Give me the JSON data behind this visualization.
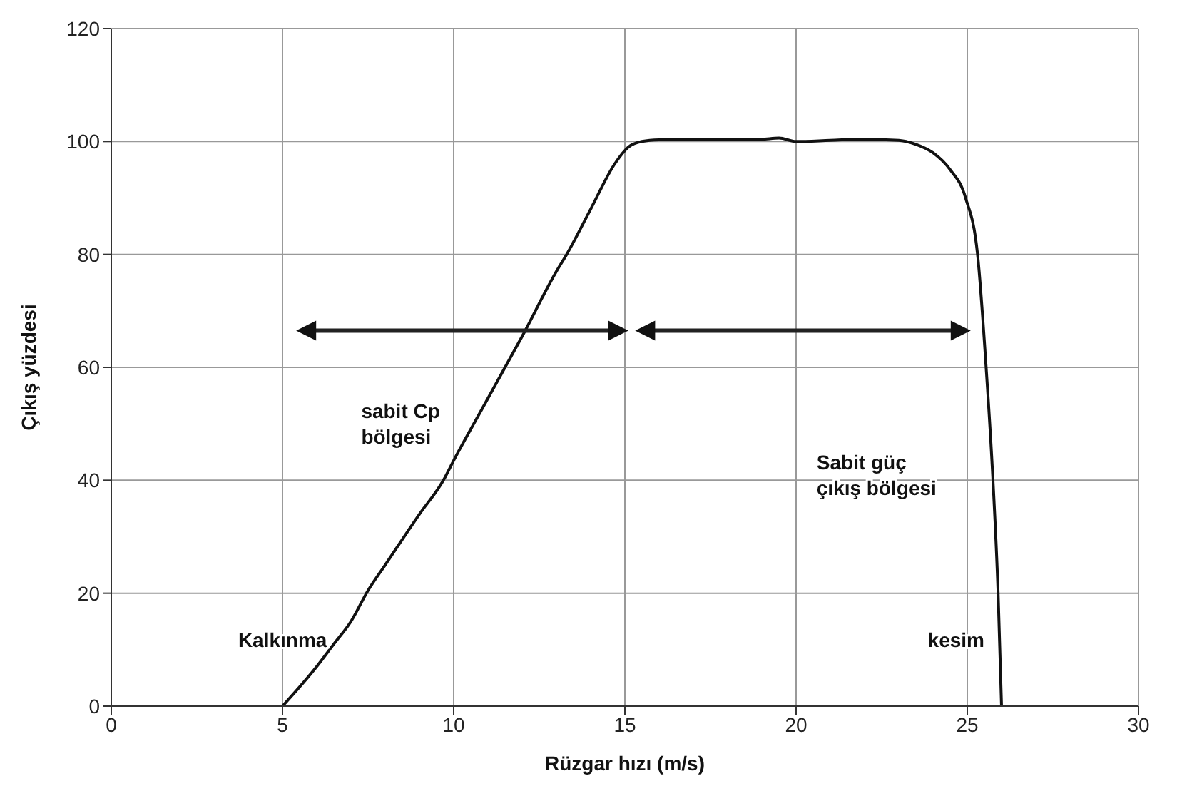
{
  "chart_data": {
    "type": "line",
    "xlabel": "Rüzgar hızı (m/s)",
    "ylabel": "Çıkış yüzdesi",
    "x": [
      5,
      6,
      6.5,
      7,
      7.5,
      8,
      9,
      9.7,
      10,
      11,
      11.5,
      12,
      13,
      13.3,
      14,
      14.7,
      15.1,
      15.5,
      16,
      17,
      18,
      19,
      19.5,
      20,
      21,
      22,
      23,
      23.5,
      24,
      24.5,
      24.95,
      25.3,
      25.55,
      25.75,
      25.9,
      26
    ],
    "series": [
      {
        "color": "#111111",
        "values": [
          0,
          7,
          11,
          15,
          20.5,
          25,
          34,
          40,
          43.5,
          54.5,
          60,
          65.5,
          77,
          80,
          88,
          96,
          99,
          100,
          100.3,
          100.4,
          100.3,
          100.4,
          100.6,
          100,
          100.2,
          100.4,
          100.2,
          99.5,
          98,
          95,
          90,
          80,
          60,
          40,
          20,
          0
        ]
      }
    ],
    "xlim": [
      0,
      30
    ],
    "ylim": [
      0,
      120
    ],
    "xticks": [
      0,
      5,
      10,
      15,
      20,
      25,
      30
    ],
    "yticks": [
      0,
      20,
      40,
      60,
      80,
      100,
      120
    ],
    "grid": true,
    "marker": "none",
    "line_style": "solid",
    "annotations": [
      "Kalkınma",
      "sabit Cp\nbölgesi",
      "Sabit güç\nçıkış bölgesi",
      "kesim"
    ]
  }
}
